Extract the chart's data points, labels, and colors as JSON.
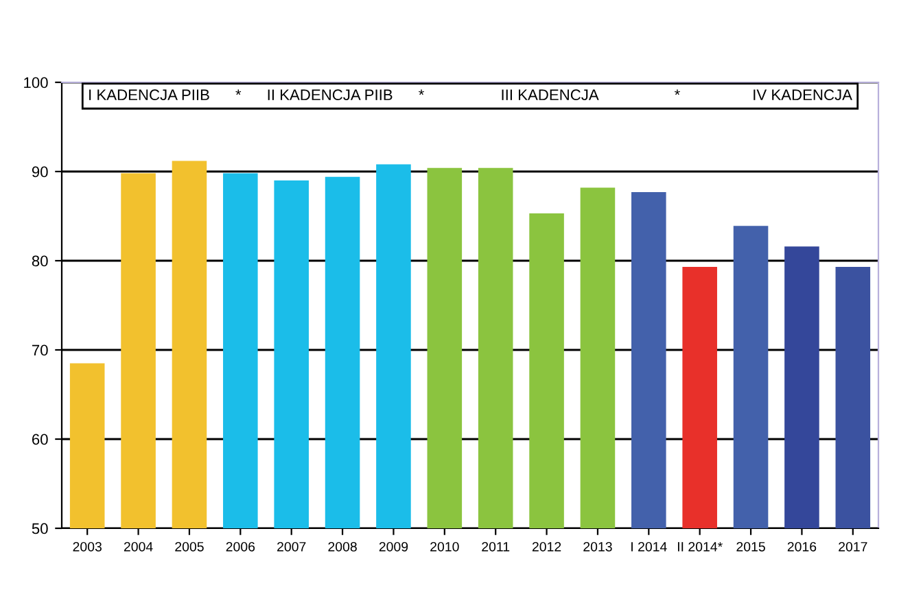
{
  "chart_data": {
    "type": "bar",
    "categories": [
      "2003",
      "2004",
      "2005",
      "2006",
      "2007",
      "2008",
      "2009",
      "2010",
      "2011",
      "2012",
      "2013",
      "I 2014",
      "II 2014*",
      "2015",
      "2016",
      "2017"
    ],
    "values": [
      68.5,
      89.8,
      91.2,
      89.8,
      89.0,
      89.4,
      90.8,
      90.4,
      90.4,
      85.3,
      88.2,
      87.7,
      79.3,
      83.9,
      81.6,
      79.3
    ],
    "colors": [
      "#f2c12e",
      "#f2c12e",
      "#f2c12e",
      "#1bbde9",
      "#1bbde9",
      "#1bbde9",
      "#1bbde9",
      "#8bc43f",
      "#8bc43f",
      "#8bc43f",
      "#8bc43f",
      "#4361ab",
      "#e8302a",
      "#4361ab",
      "#34479a",
      "#3b52a0"
    ],
    "ylim": [
      50,
      100
    ],
    "yticks": [
      50,
      60,
      70,
      80,
      90,
      100
    ],
    "grid": "y",
    "annotations": [
      "I KADENCJA PIIB      *      II KADENCJA PIIB      *                  III KADENCJA                  *                 IV KADENCJA"
    ]
  }
}
